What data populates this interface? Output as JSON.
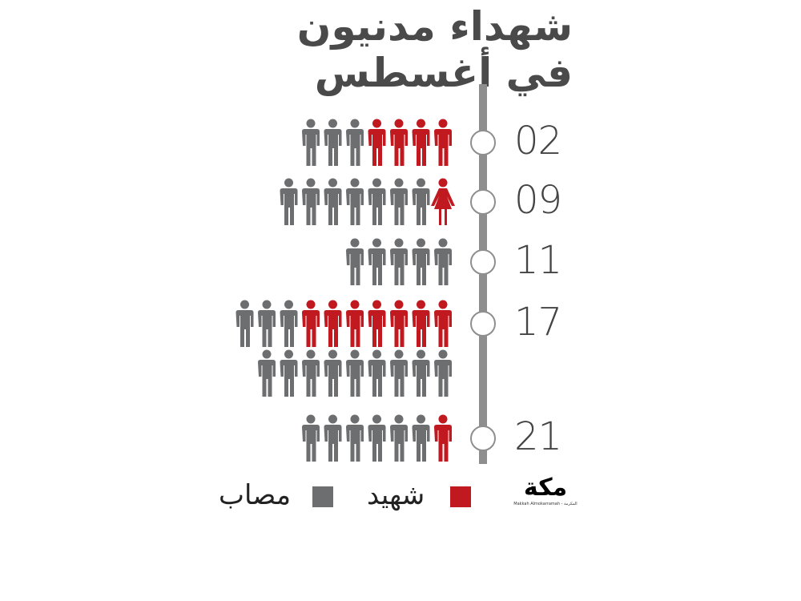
{
  "title": {
    "line1": "شهداء مدنيون",
    "line2": "في أغسطس"
  },
  "colors": {
    "martyr": "#c0191f",
    "injured": "#6d6e70",
    "timeline": "#8e8e8e"
  },
  "chart_data": {
    "type": "pictogram",
    "title": "شهداء مدنيون في أغسطس",
    "categories": [
      "02",
      "09",
      "11",
      "17",
      "21"
    ],
    "series": [
      {
        "name": "شهيد",
        "values": [
          4,
          1,
          0,
          7,
          1
        ]
      },
      {
        "name": "مصاب",
        "values": [
          3,
          7,
          5,
          12,
          6
        ]
      }
    ],
    "notes": {
      "09": "martyr icon is female"
    }
  },
  "legend": {
    "martyr": "شهيد",
    "injured": "مصاب",
    "placement": "bottom"
  },
  "logo": {
    "text": "مكة",
    "subtitle": "Makkah Almokarramah - المكرمة"
  }
}
